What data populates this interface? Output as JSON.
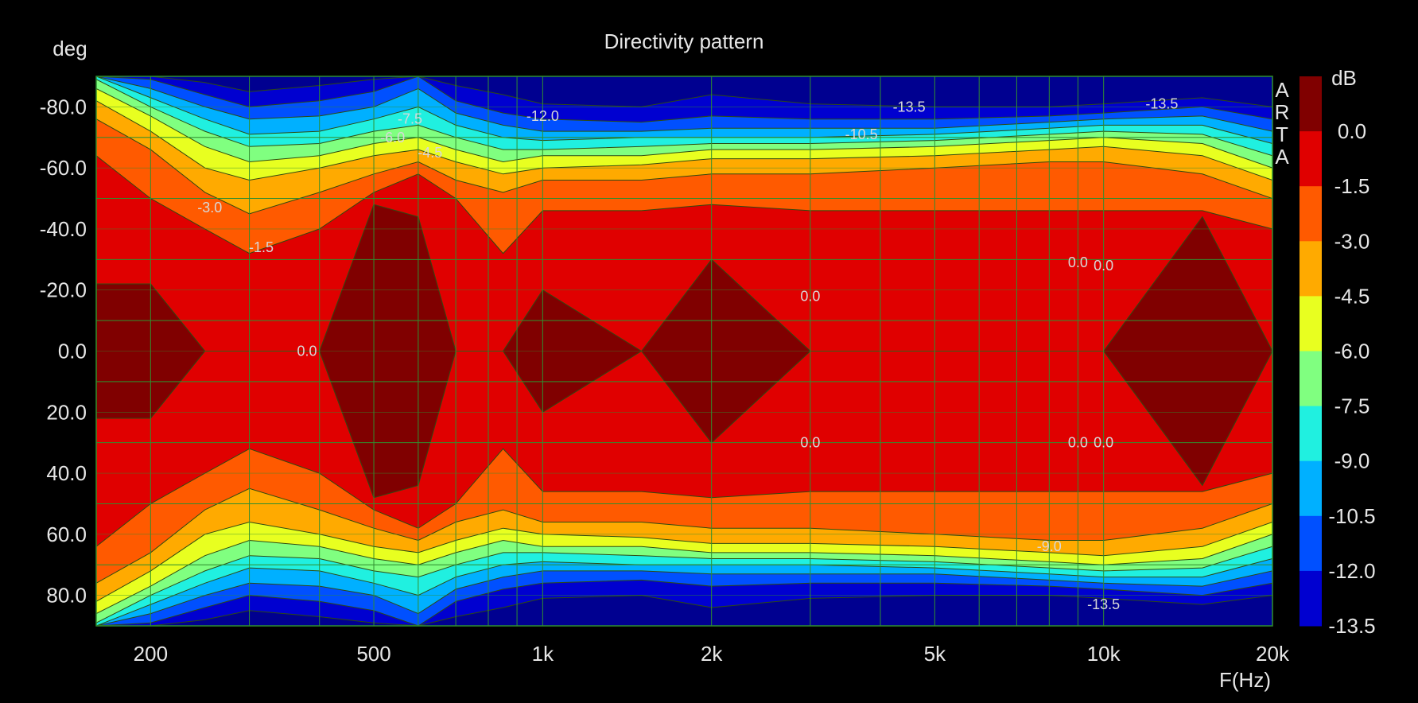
{
  "chart_data": {
    "type": "heatmap",
    "title": "Directivity pattern",
    "ylabel": "deg",
    "xlabel": "F(Hz)",
    "colorbar_label": "dB",
    "watermark": "ARTA",
    "x_scale": "log",
    "xlim": [
      160,
      20000
    ],
    "ylim": [
      -90,
      90
    ],
    "y_inverted": true,
    "grid": true,
    "x_ticks": [
      {
        "value": 200,
        "label": "200"
      },
      {
        "value": 500,
        "label": "500"
      },
      {
        "value": 1000,
        "label": "1k"
      },
      {
        "value": 2000,
        "label": "2k"
      },
      {
        "value": 5000,
        "label": "5k"
      },
      {
        "value": 10000,
        "label": "10k"
      },
      {
        "value": 20000,
        "label": "20k"
      }
    ],
    "y_ticks": [
      {
        "value": -80,
        "label": "-80.0"
      },
      {
        "value": -60,
        "label": "-60.0"
      },
      {
        "value": -40,
        "label": "-40.0"
      },
      {
        "value": -20,
        "label": "-20.0"
      },
      {
        "value": 0,
        "label": "0.0"
      },
      {
        "value": 20,
        "label": "20.0"
      },
      {
        "value": 40,
        "label": "40.0"
      },
      {
        "value": 60,
        "label": "60.0"
      },
      {
        "value": 80,
        "label": "80.0"
      }
    ],
    "levels": [
      {
        "label": "0.0",
        "color": "#800000"
      },
      {
        "label": "-1.5",
        "color": "#e00000"
      },
      {
        "label": "-3.0",
        "color": "#ff5a00"
      },
      {
        "label": "-4.5",
        "color": "#ffaa00"
      },
      {
        "label": "-6.0",
        "color": "#e8ff20"
      },
      {
        "label": "-7.5",
        "color": "#80ff80"
      },
      {
        "label": "-9.0",
        "color": "#20f0e0"
      },
      {
        "label": "-10.5",
        "color": "#00b0ff"
      },
      {
        "label": "-12.0",
        "color": "#0050ff"
      },
      {
        "label": "-13.5",
        "color": "#0000d0"
      }
    ],
    "lowest_color": "#000090",
    "beamwidth": {
      "note": "approximate angle (deg) at which each dB contour is crossed, per frequency",
      "freqs": [
        160,
        200,
        250,
        300,
        400,
        500,
        600,
        700,
        850,
        1000,
        1500,
        2000,
        3000,
        5000,
        8000,
        10000,
        15000,
        20000
      ],
      "level_angles": [
        [
          22,
          22,
          0,
          0,
          0,
          48,
          44,
          0,
          0,
          20,
          0,
          30,
          0,
          0,
          0,
          0,
          44,
          0
        ],
        [
          64,
          50,
          40,
          32,
          40,
          52,
          58,
          50,
          32,
          46,
          46,
          48,
          46,
          46,
          46,
          46,
          46,
          40
        ],
        [
          76,
          66,
          52,
          45,
          52,
          58,
          62,
          56,
          52,
          56,
          56,
          58,
          58,
          60,
          62,
          62,
          58,
          50
        ],
        [
          82,
          72,
          60,
          56,
          60,
          64,
          66,
          62,
          58,
          60,
          61,
          63,
          63,
          64,
          66,
          67,
          64,
          56
        ],
        [
          86,
          77,
          67,
          62,
          64,
          68,
          70,
          66,
          62,
          64,
          64,
          66,
          66,
          67,
          69,
          70,
          68,
          60
        ],
        [
          89,
          80,
          72,
          67,
          68,
          72,
          74,
          70,
          66,
          66,
          67,
          68,
          68,
          69,
          71,
          72,
          71,
          64
        ],
        [
          90,
          83,
          76,
          71,
          72,
          76,
          80,
          74,
          70,
          69,
          70,
          70,
          70,
          71,
          73,
          74,
          74,
          68
        ],
        [
          90,
          86,
          80,
          76,
          77,
          80,
          86,
          78,
          74,
          72,
          72,
          73,
          73,
          73,
          75,
          76,
          77,
          72
        ],
        [
          90,
          89,
          84,
          80,
          82,
          85,
          90,
          82,
          78,
          76,
          75,
          77,
          76,
          76,
          77,
          78,
          80,
          76
        ],
        [
          90,
          90,
          88,
          85,
          87,
          89,
          90,
          87,
          84,
          81,
          80,
          84,
          81,
          80,
          80,
          81,
          83,
          80
        ]
      ]
    },
    "contour_labels": [
      {
        "text": "-7.5",
        "f": 580,
        "deg": -76
      },
      {
        "text": "-12.0",
        "f": 1000,
        "deg": -77
      },
      {
        "text": "-13.5",
        "f": 4500,
        "deg": -80
      },
      {
        "text": "-13.5",
        "f": 12700,
        "deg": -81
      },
      {
        "text": "-6.0",
        "f": 540,
        "deg": -70
      },
      {
        "text": "-4.5",
        "f": 630,
        "deg": -65
      },
      {
        "text": "-10.5",
        "f": 3700,
        "deg": -71
      },
      {
        "text": "-3.0",
        "f": 255,
        "deg": -47
      },
      {
        "text": "-1.5",
        "f": 315,
        "deg": -34
      },
      {
        "text": "0.0",
        "f": 380,
        "deg": 0
      },
      {
        "text": "0.0",
        "f": 3000,
        "deg": -18
      },
      {
        "text": "0.0",
        "f": 9000,
        "deg": -29
      },
      {
        "text": "0.0",
        "f": 10000,
        "deg": -28
      },
      {
        "text": "0.0",
        "f": 3000,
        "deg": 30
      },
      {
        "text": "0.0",
        "f": 9000,
        "deg": 30
      },
      {
        "text": "0.0",
        "f": 10000,
        "deg": 30
      },
      {
        "text": "-9.0",
        "f": 8000,
        "deg": 64
      },
      {
        "text": "-13.5",
        "f": 10000,
        "deg": 83
      }
    ]
  }
}
